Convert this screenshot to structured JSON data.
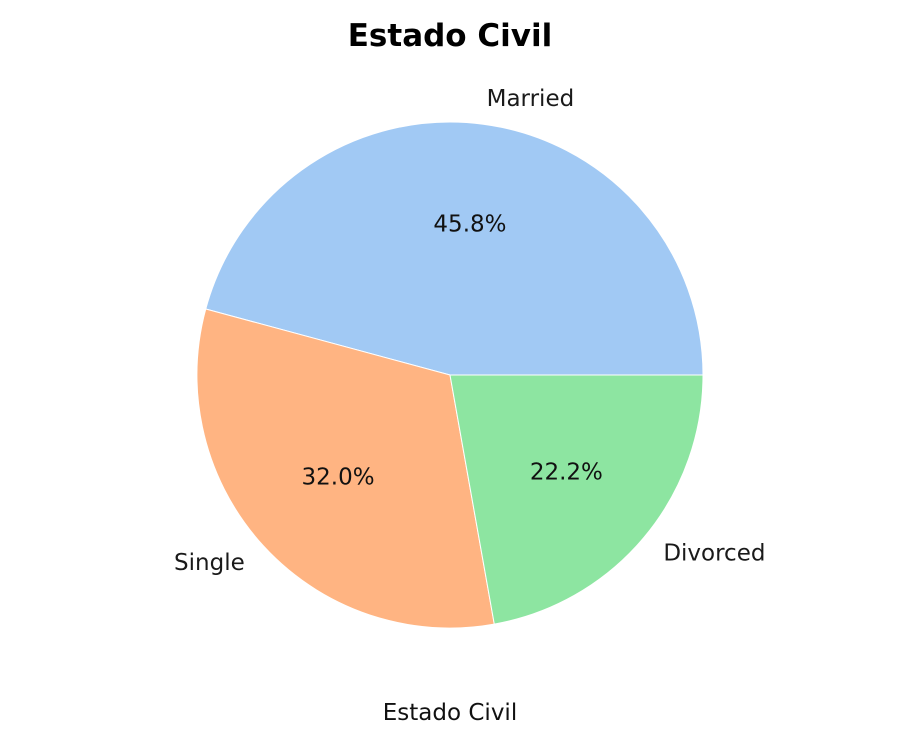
{
  "chart_data": {
    "type": "pie",
    "title": "Estado Civil",
    "xlabel": "Estado Civil",
    "start_angle_deg": 0,
    "direction": "counterclockwise",
    "slices": [
      {
        "label": "Married",
        "value": 45.8,
        "pct_label": "45.8%",
        "color": "#a1c9f4"
      },
      {
        "label": "Single",
        "value": 32.0,
        "pct_label": "32.0%",
        "color": "#ffb482"
      },
      {
        "label": "Divorced",
        "value": 22.2,
        "pct_label": "22.2%",
        "color": "#8de5a1"
      }
    ]
  }
}
